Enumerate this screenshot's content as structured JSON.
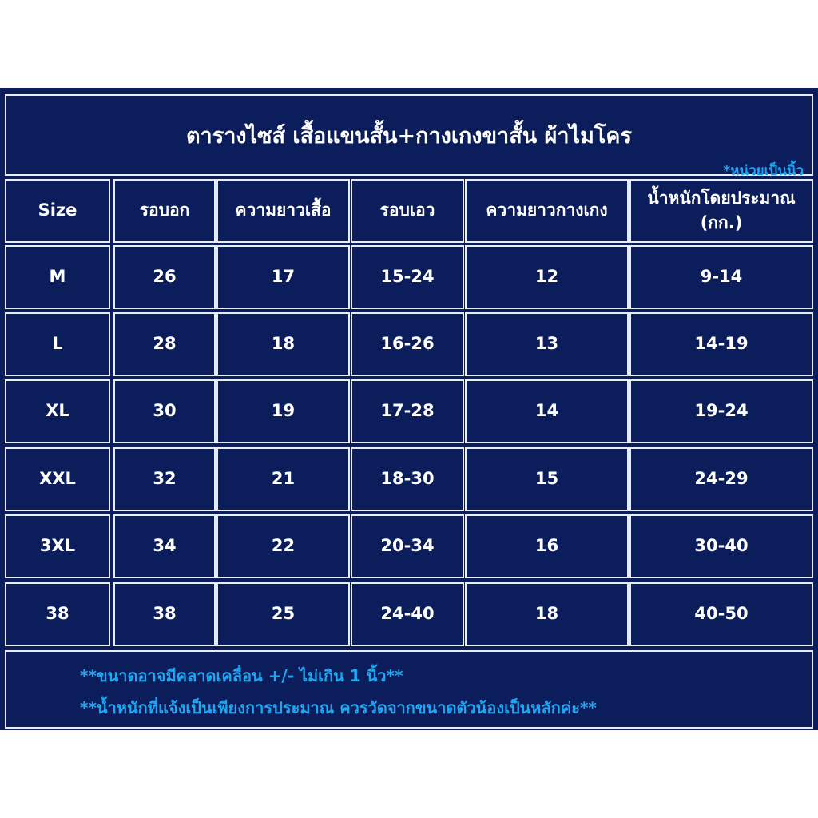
{
  "header": {
    "title": "ตารางไซส์ เสื้อแขนสั้น+กางเกงขาสั้น ผ้าไมโคร",
    "note": "*หน่วยเป็นนิ้ว"
  },
  "table": {
    "headers": [
      "Size",
      "รอบอก",
      "ความยาวเสื้อ",
      "รอบเอว",
      "ความยาวกางเกง",
      "น้ำหนักโดยประมาณ (กก.)"
    ],
    "rows": [
      [
        "M",
        "26",
        "17",
        "15-24",
        "12",
        "9-14"
      ],
      [
        "L",
        "28",
        "18",
        "16-26",
        "13",
        "14-19"
      ],
      [
        "XL",
        "30",
        "19",
        "17-28",
        "14",
        "19-24"
      ],
      [
        "XXL",
        "32",
        "21",
        "18-30",
        "15",
        "24-29"
      ],
      [
        "3XL",
        "34",
        "22",
        "20-34",
        "16",
        "30-40"
      ],
      [
        "38",
        "38",
        "25",
        "24-40",
        "18",
        "40-50"
      ]
    ]
  },
  "footer": {
    "notes": [
      "**ขนาดอาจมีคลาดเคลื่อน +/- ไม่เกิน 1 นิ้ว**",
      "**น้ำหนักที่แจ้งเป็นเพียงการประมาณ ควรวัดจากขนาดตัวน้องเป็นหลักค่ะ**"
    ]
  }
}
